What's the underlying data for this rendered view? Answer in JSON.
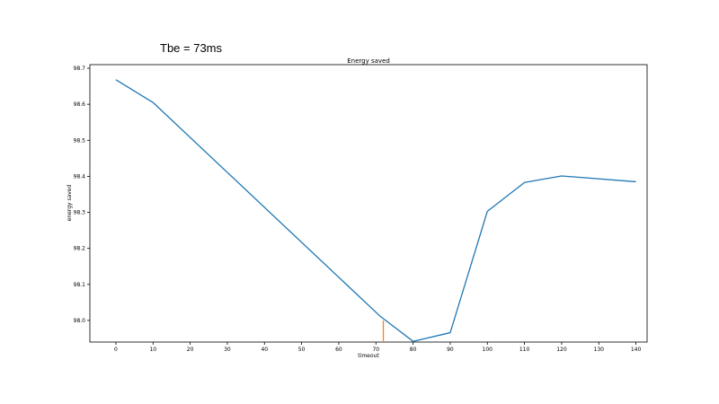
{
  "annotation": "Tbe = 73ms",
  "chart_data": {
    "type": "line",
    "title": "Energy saved",
    "xlabel": "timeout",
    "ylabel": "energy saved",
    "xlim": [
      -7,
      143
    ],
    "ylim": [
      97.94,
      98.71
    ],
    "x_ticks": [
      0,
      10,
      20,
      30,
      40,
      50,
      60,
      70,
      80,
      90,
      100,
      110,
      120,
      130,
      140
    ],
    "y_ticks": [
      98.0,
      98.1,
      98.2,
      98.3,
      98.4,
      98.5,
      98.6,
      98.7
    ],
    "y_tick_labels": [
      "98.0",
      "98.1",
      "98.2",
      "98.3",
      "98.4",
      "98.5",
      "98.6",
      "98.7"
    ],
    "grid": false,
    "series": [
      {
        "color": "#1f77b4",
        "x": [
          0,
          10,
          71,
          80,
          90,
          100,
          110,
          120,
          140
        ],
        "y": [
          98.668,
          98.605,
          98.013,
          97.942,
          97.966,
          98.303,
          98.383,
          98.401,
          98.385
        ]
      }
    ],
    "vertical_marker": {
      "color": "#ff7f0e",
      "x": 72,
      "y_top": 98.0
    }
  }
}
